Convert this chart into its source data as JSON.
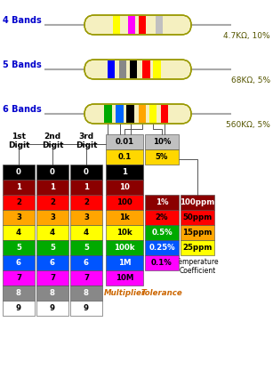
{
  "bg_color": "#ffffff",
  "resistor_body_color": "#F5F0C0",
  "resistor_wire_color": "#aaaaaa",
  "resistor_outline_color": "#999900",
  "band_labels": [
    "4 Bands",
    "5 Bands",
    "6 Bands"
  ],
  "resistor_values": [
    "4.7KΩ, 10%",
    "68KΩ, 5%",
    "560KΩ, 5%"
  ],
  "resistor4_bands": [
    {
      "color": "#FFFF00",
      "xf": 0.3
    },
    {
      "color": "#FF00FF",
      "xf": 0.44
    },
    {
      "color": "#FF0000",
      "xf": 0.54
    },
    {
      "color": "#C0C0C0",
      "xf": 0.7
    }
  ],
  "resistor5_bands": [
    {
      "color": "#0000FF",
      "xf": 0.25
    },
    {
      "color": "#888888",
      "xf": 0.36
    },
    {
      "color": "#000000",
      "xf": 0.46
    },
    {
      "color": "#FF0000",
      "xf": 0.58
    },
    {
      "color": "#FFFF00",
      "xf": 0.68
    }
  ],
  "resistor6_bands": [
    {
      "color": "#00AA00",
      "xf": 0.22
    },
    {
      "color": "#0066FF",
      "xf": 0.33
    },
    {
      "color": "#000000",
      "xf": 0.43
    },
    {
      "color": "#FFA500",
      "xf": 0.54
    },
    {
      "color": "#FFFF00",
      "xf": 0.64
    },
    {
      "color": "#FF0000",
      "xf": 0.75
    }
  ],
  "digit_colors": [
    {
      "value": "0",
      "bg": "#000000",
      "fg": "#FFFFFF"
    },
    {
      "value": "1",
      "bg": "#8B0000",
      "fg": "#FFFFFF"
    },
    {
      "value": "2",
      "bg": "#FF0000",
      "fg": "#000000"
    },
    {
      "value": "3",
      "bg": "#FFA500",
      "fg": "#000000"
    },
    {
      "value": "4",
      "bg": "#FFFF00",
      "fg": "#000000"
    },
    {
      "value": "5",
      "bg": "#00AA00",
      "fg": "#FFFFFF"
    },
    {
      "value": "6",
      "bg": "#0055FF",
      "fg": "#FFFFFF"
    },
    {
      "value": "7",
      "bg": "#FF00FF",
      "fg": "#000000"
    },
    {
      "value": "8",
      "bg": "#888888",
      "fg": "#FFFFFF"
    },
    {
      "value": "9",
      "bg": "#FFFFFF",
      "fg": "#000000"
    }
  ],
  "multiplier_header": [
    {
      "value": "0.01",
      "bg": "#C0C0C0",
      "fg": "#000000"
    },
    {
      "value": "0.1",
      "bg": "#FFD700",
      "fg": "#000000"
    }
  ],
  "multiplier_main": [
    {
      "value": "1",
      "bg": "#000000",
      "fg": "#FFFFFF"
    },
    {
      "value": "10",
      "bg": "#8B0000",
      "fg": "#FFFFFF"
    },
    {
      "value": "100",
      "bg": "#FF0000",
      "fg": "#000000"
    },
    {
      "value": "1k",
      "bg": "#FFA500",
      "fg": "#000000"
    },
    {
      "value": "10k",
      "bg": "#FFFF00",
      "fg": "#000000"
    },
    {
      "value": "100k",
      "bg": "#00AA00",
      "fg": "#FFFFFF"
    },
    {
      "value": "1M",
      "bg": "#0055FF",
      "fg": "#FFFFFF"
    },
    {
      "value": "10M",
      "bg": "#FF00FF",
      "fg": "#000000"
    }
  ],
  "tolerance_header": [
    {
      "value": "10%",
      "bg": "#C0C0C0",
      "fg": "#000000"
    },
    {
      "value": "5%",
      "bg": "#FFD700",
      "fg": "#000000"
    }
  ],
  "tolerance_main": [
    {
      "value": "1%",
      "bg": "#8B0000",
      "fg": "#FFFFFF"
    },
    {
      "value": "2%",
      "bg": "#FF0000",
      "fg": "#000000"
    },
    {
      "value": "0.5%",
      "bg": "#00AA00",
      "fg": "#FFFFFF"
    },
    {
      "value": "0.25%",
      "bg": "#0055FF",
      "fg": "#FFFFFF"
    },
    {
      "value": "0.1%",
      "bg": "#FF00FF",
      "fg": "#000000"
    }
  ],
  "temp_coeff_colors": [
    {
      "value": "100ppm",
      "bg": "#8B0000",
      "fg": "#FFFFFF"
    },
    {
      "value": "50ppm",
      "bg": "#FF0000",
      "fg": "#000000"
    },
    {
      "value": "15ppm",
      "bg": "#FFA500",
      "fg": "#000000"
    },
    {
      "value": "25ppm",
      "bg": "#FFFF00",
      "fg": "#000000"
    }
  ],
  "label_color": "#0000CC",
  "value_color": "#555500",
  "multiplier_label_color": "#CC6600",
  "tolerance_label_color": "#CC6600"
}
